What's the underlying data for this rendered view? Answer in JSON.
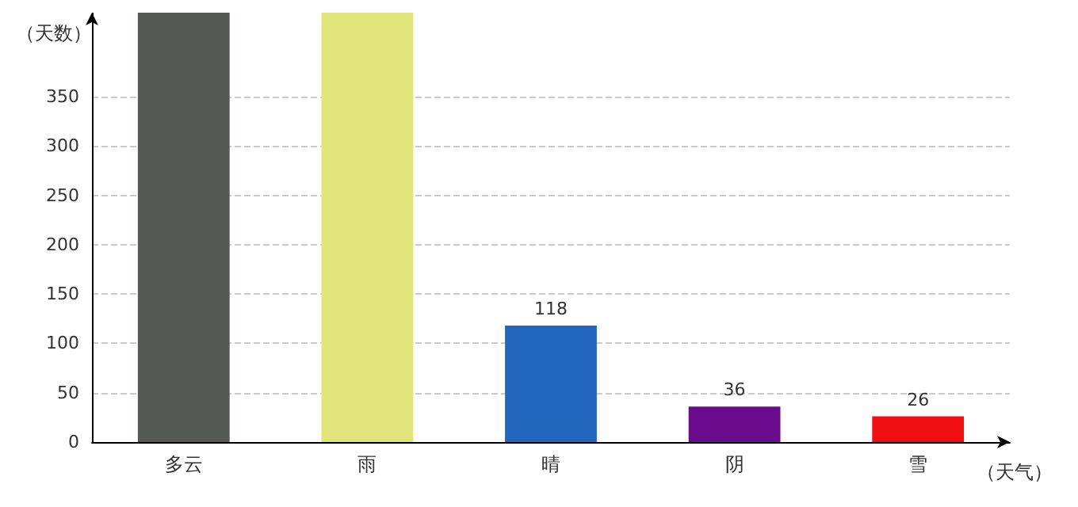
{
  "chart_data": {
    "type": "bar",
    "xlabel": "（天气）",
    "ylabel": "（天数）",
    "categories": [
      "多云",
      "雨",
      "晴",
      "阴",
      "雪"
    ],
    "values": [
      435,
      435,
      118,
      36,
      26
    ],
    "colors": [
      "#535953",
      "#e1e47a",
      "#2366bd",
      "#6a0a8c",
      "#f20f14"
    ],
    "value_labels": [
      null,
      null,
      "118",
      "36",
      "26"
    ],
    "ylim": [
      0,
      435
    ],
    "yticks": [
      0,
      50,
      100,
      150,
      200,
      250,
      300,
      350
    ],
    "grid": "y"
  }
}
